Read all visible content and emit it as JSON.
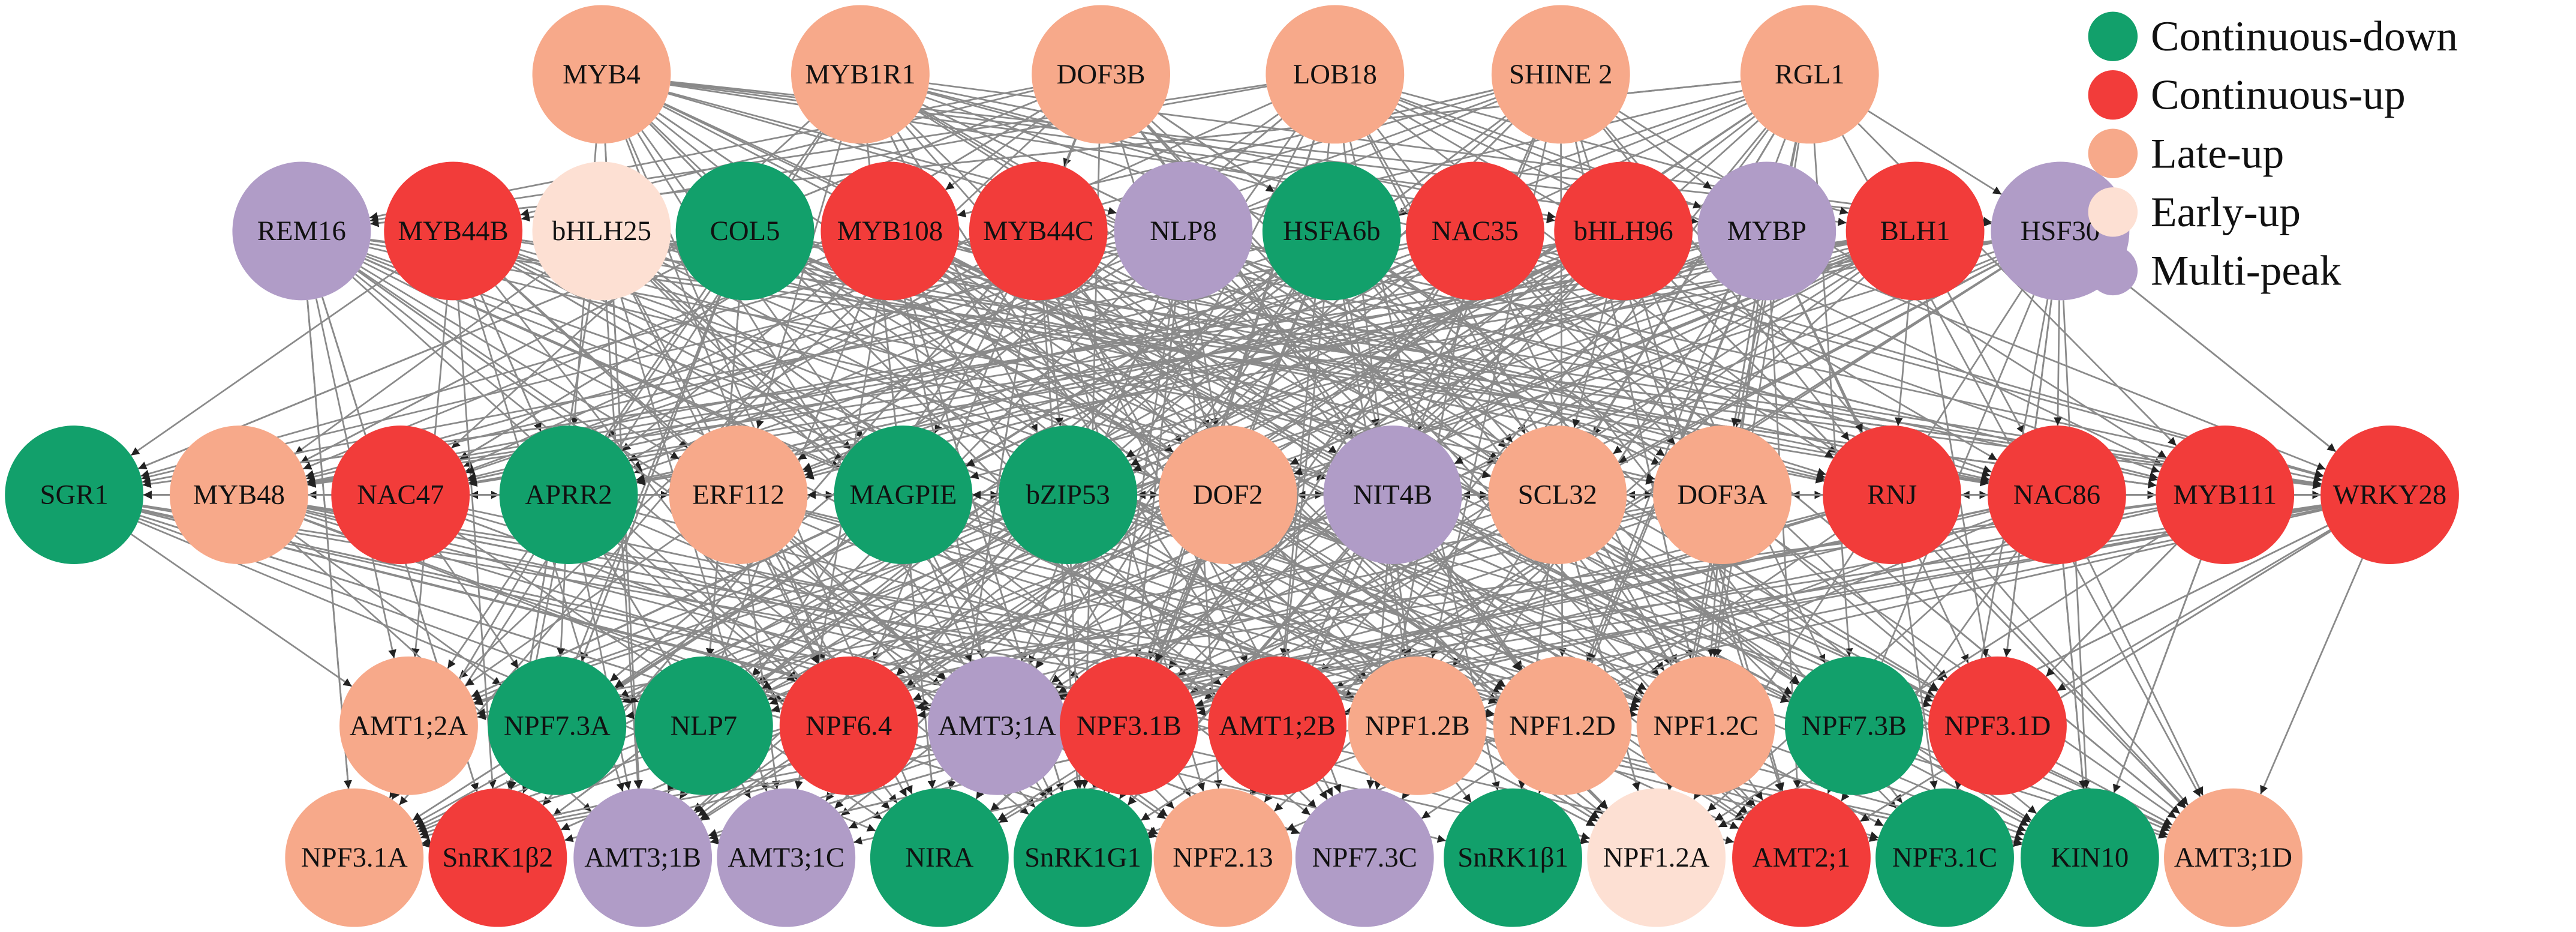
{
  "legend": [
    {
      "label": "Continuous-down",
      "color": "#12a06b"
    },
    {
      "label": "Continuous-up",
      "color": "#f23c3a"
    },
    {
      "label": "Late-up",
      "color": "#f7a98a"
    },
    {
      "label": "Early-up",
      "color": "#fde0d3"
    },
    {
      "label": "Multi-peak",
      "color": "#b09cc7"
    }
  ],
  "nodes": [
    {
      "label": "MYB4",
      "color": "#f7a98a"
    },
    {
      "label": "MYB1R1",
      "color": "#f7a98a"
    },
    {
      "label": "DOF3B",
      "color": "#f7a98a"
    },
    {
      "label": "LOB18",
      "color": "#f7a98a"
    },
    {
      "label": "SHINE 2",
      "color": "#f7a98a"
    },
    {
      "label": "RGL1",
      "color": "#f7a98a"
    },
    {
      "label": "REM16",
      "color": "#b09cc7"
    },
    {
      "label": "MYB44B",
      "color": "#f23c3a"
    },
    {
      "label": "bHLH25",
      "color": "#fde0d3"
    },
    {
      "label": "COL5",
      "color": "#12a06b"
    },
    {
      "label": "MYB108",
      "color": "#f23c3a"
    },
    {
      "label": "MYB44C",
      "color": "#f23c3a"
    },
    {
      "label": "NLP8",
      "color": "#b09cc7"
    },
    {
      "label": "HSFA6b",
      "color": "#12a06b"
    },
    {
      "label": "NAC35",
      "color": "#f23c3a"
    },
    {
      "label": "bHLH96",
      "color": "#f23c3a"
    },
    {
      "label": "MYBP",
      "color": "#b09cc7"
    },
    {
      "label": "BLH1",
      "color": "#f23c3a"
    },
    {
      "label": "HSF30",
      "color": "#b09cc7"
    },
    {
      "label": "SGR1",
      "color": "#12a06b"
    },
    {
      "label": "MYB48",
      "color": "#f7a98a"
    },
    {
      "label": "NAC47",
      "color": "#f23c3a"
    },
    {
      "label": "APRR2",
      "color": "#12a06b"
    },
    {
      "label": "ERF112",
      "color": "#f7a98a"
    },
    {
      "label": "MAGPIE",
      "color": "#12a06b"
    },
    {
      "label": "bZIP53",
      "color": "#12a06b"
    },
    {
      "label": "DOF2",
      "color": "#f7a98a"
    },
    {
      "label": "NIT4B",
      "color": "#b09cc7"
    },
    {
      "label": "SCL32",
      "color": "#f7a98a"
    },
    {
      "label": "DOF3A",
      "color": "#f7a98a"
    },
    {
      "label": "RNJ",
      "color": "#f23c3a"
    },
    {
      "label": "NAC86",
      "color": "#f23c3a"
    },
    {
      "label": "MYB111",
      "color": "#f23c3a"
    },
    {
      "label": "WRKY28",
      "color": "#f23c3a"
    },
    {
      "label": "AMT1;2A",
      "color": "#f7a98a"
    },
    {
      "label": "NPF7.3A",
      "color": "#12a06b"
    },
    {
      "label": "NLP7",
      "color": "#12a06b"
    },
    {
      "label": "NPF6.4",
      "color": "#f23c3a"
    },
    {
      "label": "AMT3;1A",
      "color": "#b09cc7"
    },
    {
      "label": "NPF3.1B",
      "color": "#f23c3a"
    },
    {
      "label": "AMT1;2B",
      "color": "#f23c3a"
    },
    {
      "label": "NPF1.2B",
      "color": "#f7a98a"
    },
    {
      "label": "NPF1.2D",
      "color": "#f7a98a"
    },
    {
      "label": "NPF1.2C",
      "color": "#f7a98a"
    },
    {
      "label": "NPF7.3B",
      "color": "#12a06b"
    },
    {
      "label": "NPF3.1D",
      "color": "#f23c3a"
    },
    {
      "label": "NPF3.1A",
      "color": "#f7a98a"
    },
    {
      "label": "SnRK1β2",
      "color": "#f23c3a"
    },
    {
      "label": "AMT3;1B",
      "color": "#b09cc7"
    },
    {
      "label": "AMT3;1C",
      "color": "#b09cc7"
    },
    {
      "label": "NIRA",
      "color": "#12a06b"
    },
    {
      "label": "SnRK1G1",
      "color": "#12a06b"
    },
    {
      "label": "NPF2.13",
      "color": "#f7a98a"
    },
    {
      "label": "NPF7.3C",
      "color": "#b09cc7"
    },
    {
      "label": "SnRK1β1",
      "color": "#12a06b"
    },
    {
      "label": "NPF1.2A",
      "color": "#fde0d3"
    },
    {
      "label": "AMT2;1",
      "color": "#f23c3a"
    },
    {
      "label": "NPF3.1C",
      "color": "#12a06b"
    },
    {
      "label": "KIN10",
      "color": "#12a06b"
    },
    {
      "label": "AMT3;1D",
      "color": "#f7a98a"
    }
  ]
}
